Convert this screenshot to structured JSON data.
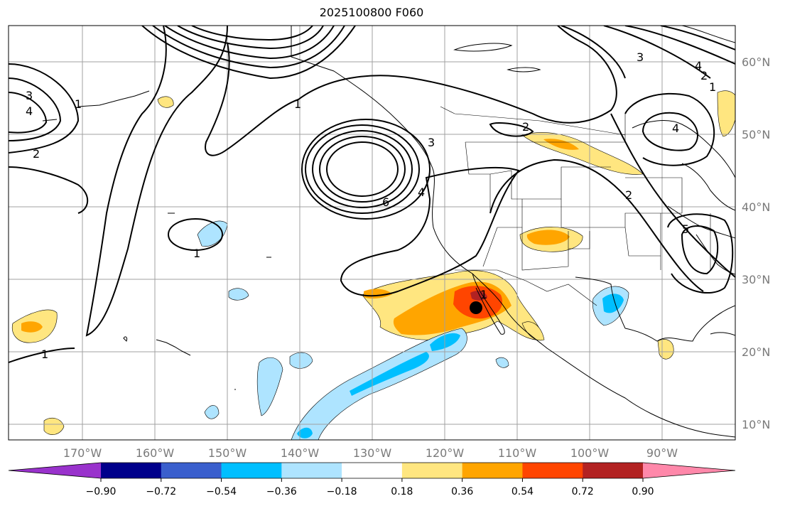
{
  "title": "2025100800 F060",
  "map": {
    "lon_labels": [
      "170°W",
      "160°W",
      "150°W",
      "140°W",
      "130°W",
      "120°W",
      "110°W",
      "100°W",
      "90°W"
    ],
    "lat_labels": [
      "60°N",
      "50°N",
      "40°N",
      "30°N",
      "20°N",
      "10°N"
    ],
    "contour_labels": [
      "1",
      "2",
      "3",
      "4",
      "5",
      "6"
    ],
    "marker": "black-dot-marker"
  },
  "colorbar": {
    "ticks": [
      "−0.90",
      "−0.72",
      "−0.54",
      "−0.36",
      "−0.18",
      "0.18",
      "0.36",
      "0.54",
      "0.72",
      "0.90"
    ],
    "colors": [
      "#9932cc",
      "#00008b",
      "#3a5fcd",
      "#00bfff",
      "#aee4ff",
      "#ffffff",
      "#ffe680",
      "#ffa500",
      "#ff4500",
      "#b22222",
      "#ff88aa"
    ]
  },
  "colors": {
    "grid": "#a0a0a0",
    "contour": "#000000",
    "coast": "#000000"
  }
}
